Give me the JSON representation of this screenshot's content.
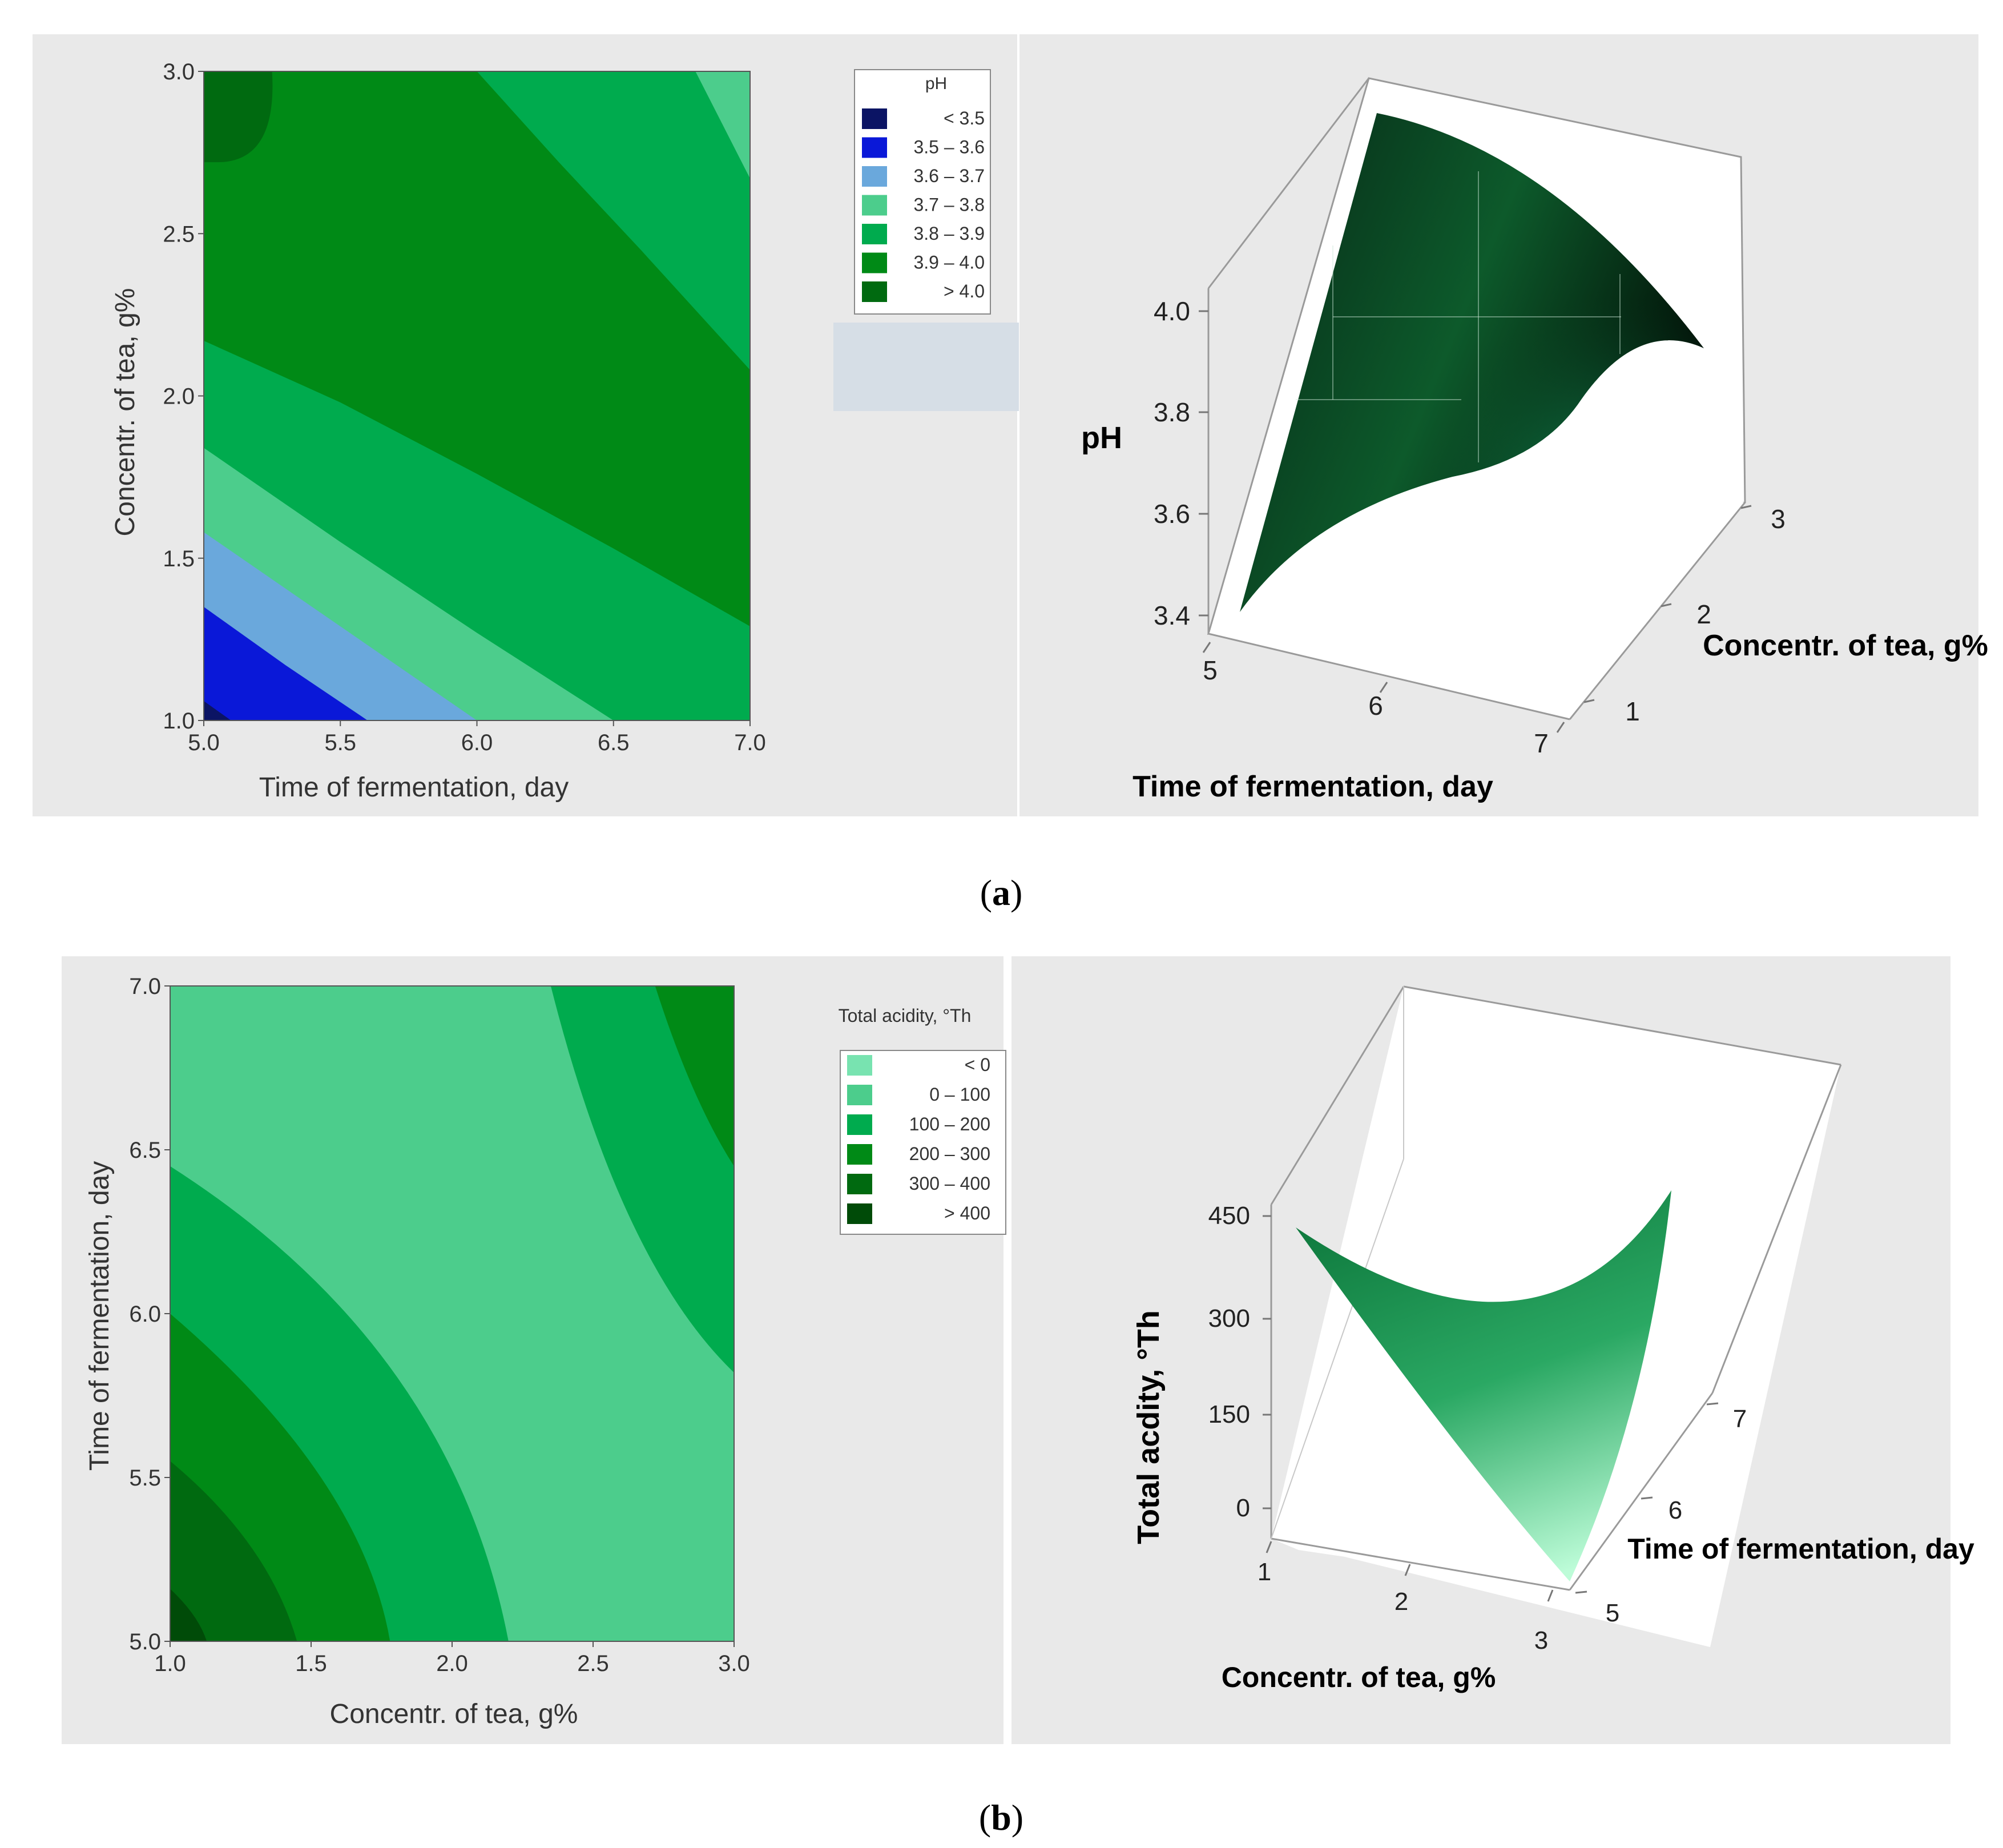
{
  "figure": {
    "caption_a": "a",
    "caption_b": "b"
  },
  "chart_data": [
    {
      "id": "a-contour",
      "type": "contour",
      "xlabel": "Time of fermentation, day",
      "ylabel": "Concentr. of tea, g%",
      "xlim": [
        5.0,
        7.0
      ],
      "ylim": [
        1.0,
        3.0
      ],
      "xticks": [
        "5.0",
        "5.5",
        "6.0",
        "6.5",
        "7.0"
      ],
      "yticks": [
        "1.0",
        "1.5",
        "2.0",
        "2.5",
        "3.0"
      ],
      "legend_title": "pH",
      "legend_position": "right",
      "levels": [
        {
          "label": "< 3.5",
          "color": "#0b1464"
        },
        {
          "label": "3.5 – 3.6",
          "color": "#0a18d8"
        },
        {
          "label": "3.6 – 3.7",
          "color": "#6aa8dc"
        },
        {
          "label": "3.7 – 3.8",
          "color": "#4ccd8c"
        },
        {
          "label": "3.8 – 3.9",
          "color": "#00ab4e"
        },
        {
          "label": "3.9 – 4.0",
          "color": "#008a16"
        },
        {
          "label": "> 4.0",
          "color": "#006a10"
        }
      ],
      "boundaries": [
        {
          "level": 0,
          "points": [
            [
              5.0,
              1.06
            ],
            [
              5.1,
              1.0
            ]
          ]
        },
        {
          "level": 1,
          "points": [
            [
              5.0,
              1.35
            ],
            [
              5.6,
              1.0
            ]
          ]
        },
        {
          "level": 2,
          "points": [
            [
              5.0,
              1.58
            ],
            [
              6.0,
              1.0
            ]
          ]
        },
        {
          "level": 3,
          "points": [
            [
              5.0,
              1.84
            ],
            [
              6.5,
              1.0
            ]
          ]
        },
        {
          "level": 4,
          "points": [
            [
              5.0,
              2.17
            ],
            [
              7.0,
              1.29
            ]
          ]
        },
        {
          "level": 5,
          "points": [
            [
              6.0,
              3.0
            ],
            [
              7.0,
              2.08
            ]
          ]
        },
        {
          "level": 6,
          "points": [
            [
              6.8,
              3.0
            ],
            [
              7.0,
              2.67
            ]
          ]
        }
      ],
      "corner_high_region": {
        "label": "> 4.0",
        "x": [
          5.0,
          5.25
        ],
        "y": [
          2.72,
          3.0
        ]
      }
    },
    {
      "id": "a-surface",
      "type": "surface3d",
      "zlabel": "pH",
      "xlabel": "Time of fermentation, day",
      "ylabel": "Concentr. of tea, g%",
      "zticks": [
        "3.4",
        "3.6",
        "3.8",
        "4.0"
      ],
      "xticks": [
        "5",
        "6",
        "7"
      ],
      "yticks": [
        "1",
        "2",
        "3"
      ],
      "zlim": [
        3.4,
        4.1
      ],
      "colormap": [
        "#0a2a14",
        "#0f7a42",
        "#3cf39a"
      ]
    },
    {
      "id": "b-contour",
      "type": "contour",
      "xlabel": "Concentr. of tea, g%",
      "ylabel": "Time of fermentation, day",
      "xlim": [
        1.0,
        3.0
      ],
      "ylim": [
        5.0,
        7.0
      ],
      "xticks": [
        "1.0",
        "1.5",
        "2.0",
        "2.5",
        "3.0"
      ],
      "yticks": [
        "5.0",
        "5.5",
        "6.0",
        "6.5",
        "7.0"
      ],
      "legend_title": "Total acidity, °Th",
      "legend_position": "right",
      "levels": [
        {
          "label": "< 0",
          "color": "#78e3b0"
        },
        {
          "label": "0 – 100",
          "color": "#4ccd8c"
        },
        {
          "label": "100 – 200",
          "color": "#00ab4e"
        },
        {
          "label": "200 – 300",
          "color": "#008a16"
        },
        {
          "label": "300 – 400",
          "color": "#006a10"
        },
        {
          "label": "> 400",
          "color": "#004b08"
        }
      ]
    },
    {
      "id": "b-surface",
      "type": "surface3d",
      "zlabel": "Total acdity, °Th",
      "xlabel": "Concentr. of tea, g%",
      "ylabel": "Time of fermentation, day",
      "zticks": [
        "0",
        "150",
        "300",
        "450"
      ],
      "xticks": [
        "1",
        "2",
        "3"
      ],
      "yticks": [
        "5",
        "6",
        "7"
      ],
      "zlim": [
        0,
        450
      ],
      "colormap": [
        "#b2fad2",
        "#36b873",
        "#0d7a3c"
      ]
    }
  ]
}
